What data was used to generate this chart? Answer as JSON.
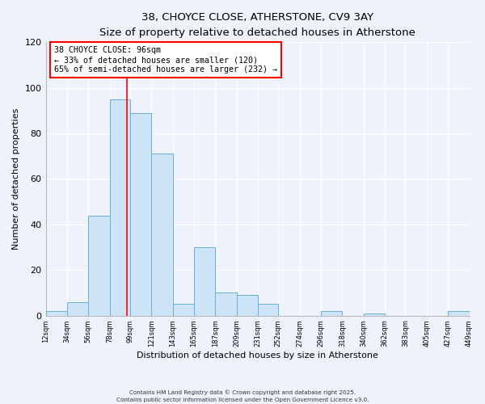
{
  "title_line1": "38, CHOYCE CLOSE, ATHERSTONE, CV9 3AY",
  "title_line2": "Size of property relative to detached houses in Atherstone",
  "xlabel": "Distribution of detached houses by size in Atherstone",
  "ylabel": "Number of detached properties",
  "bin_edges": [
    12,
    34,
    56,
    78,
    99,
    121,
    143,
    165,
    187,
    209,
    231,
    252,
    274,
    296,
    318,
    340,
    362,
    383,
    405,
    427,
    449
  ],
  "bar_heights": [
    2,
    6,
    44,
    95,
    89,
    71,
    5,
    30,
    10,
    9,
    5,
    0,
    0,
    2,
    0,
    1,
    0,
    0,
    0,
    2
  ],
  "bar_color": "#cce4f5",
  "bar_edge_color": "#6aafd6",
  "property_line_x": 96,
  "property_line_color": "red",
  "annotation_title": "38 CHOYCE CLOSE: 96sqm",
  "annotation_line1": "← 33% of detached houses are smaller (120)",
  "annotation_line2": "65% of semi-detached houses are larger (232) →",
  "annotation_box_color": "white",
  "annotation_box_edge_color": "red",
  "ylim": [
    0,
    120
  ],
  "yticks": [
    0,
    20,
    40,
    60,
    80,
    100,
    120
  ],
  "tick_labels": [
    "12sqm",
    "34sqm",
    "56sqm",
    "78sqm",
    "99sqm",
    "121sqm",
    "143sqm",
    "165sqm",
    "187sqm",
    "209sqm",
    "231sqm",
    "252sqm",
    "274sqm",
    "296sqm",
    "318sqm",
    "340sqm",
    "362sqm",
    "383sqm",
    "405sqm",
    "427sqm",
    "449sqm"
  ],
  "footer_line1": "Contains HM Land Registry data © Crown copyright and database right 2025.",
  "footer_line2": "Contains public sector information licensed under the Open Government Licence v3.0.",
  "background_color": "#eef2fb"
}
